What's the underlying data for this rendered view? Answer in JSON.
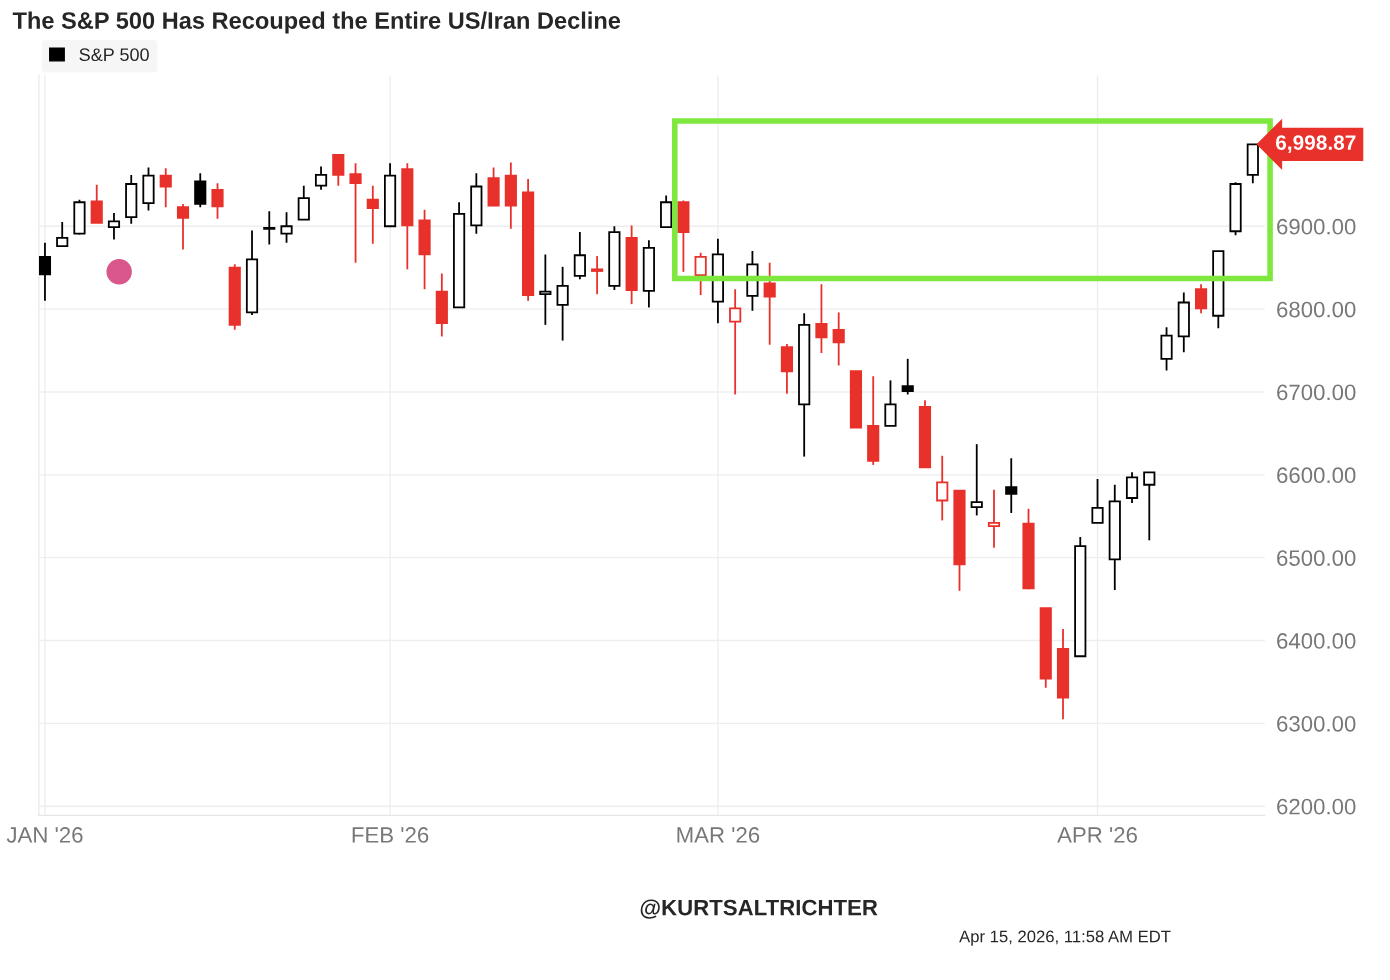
{
  "chart_data": {
    "type": "candlestick",
    "title": "The S&P 500 Has Recouped the Entire US/Iran Decline",
    "categories": [
      "JAN '26",
      null,
      null,
      null,
      null,
      null,
      null,
      null,
      null,
      null,
      null,
      null,
      null,
      null,
      null,
      null,
      null,
      null,
      null,
      null,
      "FEB '26",
      null,
      null,
      null,
      null,
      null,
      null,
      null,
      null,
      null,
      null,
      null,
      null,
      null,
      null,
      null,
      null,
      null,
      null,
      "MAR '26",
      null,
      null,
      null,
      null,
      null,
      null,
      null,
      null,
      null,
      null,
      null,
      null,
      null,
      null,
      null,
      null,
      null,
      null,
      null,
      null,
      null,
      "APR '26",
      null,
      null,
      null,
      null,
      null,
      null,
      null,
      null,
      null
    ],
    "series": [
      {
        "name": "S&P 500",
        "ohlc": [
          [
            6863,
            6880,
            6810,
            6842
          ],
          [
            6876,
            6905,
            6876,
            6886
          ],
          [
            6891,
            6932,
            6890,
            6929
          ],
          [
            6930,
            6950,
            6904,
            6904
          ],
          [
            6899,
            6916,
            6884,
            6906
          ],
          [
            6911,
            6962,
            6903,
            6951
          ],
          [
            6928,
            6971,
            6919,
            6961
          ],
          [
            6961,
            6970,
            6923,
            6948
          ],
          [
            6923,
            6927,
            6872,
            6910
          ],
          [
            6954,
            6964,
            6923,
            6927
          ],
          [
            6944,
            6952,
            6909,
            6924
          ],
          [
            6850,
            6854,
            6775,
            6781
          ],
          [
            6796,
            6895,
            6793,
            6860
          ],
          [
            6897,
            6918,
            6878,
            6898
          ],
          [
            6891,
            6917,
            6880,
            6900
          ],
          [
            6908,
            6949,
            6908,
            6934
          ],
          [
            6949,
            6972,
            6944,
            6962
          ],
          [
            6986,
            6986,
            6949,
            6962
          ],
          [
            6963,
            6976,
            6856,
            6952
          ],
          [
            6932,
            6949,
            6879,
            6922
          ],
          [
            6900,
            6976,
            6900,
            6961
          ],
          [
            6969,
            6976,
            6848,
            6901
          ],
          [
            6907,
            6920,
            6824,
            6866
          ],
          [
            6821,
            6843,
            6767,
            6783
          ],
          [
            6802,
            6929,
            6802,
            6915
          ],
          [
            6901,
            6964,
            6891,
            6948
          ],
          [
            6958,
            6971,
            6924,
            6925
          ],
          [
            6961,
            6977,
            6897,
            6925
          ],
          [
            6941,
            6957,
            6810,
            6817
          ],
          [
            6818,
            6866,
            6781,
            6821
          ],
          [
            6805,
            6851,
            6762,
            6828
          ],
          [
            6840,
            6893,
            6836,
            6865
          ],
          [
            6848,
            6864,
            6818,
            6846
          ],
          [
            6828,
            6900,
            6823,
            6893
          ],
          [
            6886,
            6901,
            6806,
            6823
          ],
          [
            6822,
            6883,
            6802,
            6874
          ],
          [
            6899,
            6937,
            6899,
            6929
          ],
          [
            6929,
            6931,
            6845,
            6893
          ],
          [
            6841,
            6868,
            6817,
            6863
          ],
          [
            6809,
            6885,
            6783,
            6866
          ],
          [
            6785,
            6824,
            6697,
            6801
          ],
          [
            6816,
            6870,
            6798,
            6854
          ],
          [
            6831,
            6856,
            6757,
            6815
          ],
          [
            6754,
            6758,
            6698,
            6725
          ],
          [
            6685,
            6795,
            6622,
            6781
          ],
          [
            6782,
            6830,
            6747,
            6766
          ],
          [
            6775,
            6796,
            6732,
            6760
          ],
          [
            6725,
            6725,
            6657,
            6657
          ],
          [
            6659,
            6719,
            6612,
            6617
          ],
          [
            6659,
            6714,
            6659,
            6685
          ],
          [
            6707,
            6740,
            6697,
            6701
          ],
          [
            6682,
            6690,
            6609,
            6609
          ],
          [
            6569,
            6623,
            6545,
            6591
          ],
          [
            6581,
            6581,
            6460,
            6492
          ],
          [
            6561,
            6637,
            6551,
            6567
          ],
          [
            6538,
            6582,
            6512,
            6542
          ],
          [
            6585,
            6620,
            6554,
            6577
          ],
          [
            6541,
            6559,
            6462,
            6463
          ],
          [
            6439,
            6439,
            6343,
            6354
          ],
          [
            6390,
            6414,
            6305,
            6331
          ],
          [
            6381,
            6525,
            6381,
            6514
          ],
          [
            6542,
            6595,
            6542,
            6560
          ],
          [
            6498,
            6588,
            6461,
            6568
          ],
          [
            6572,
            6603,
            6566,
            6597
          ],
          [
            6588,
            6603,
            6521,
            6603
          ],
          [
            6740,
            6778,
            6726,
            6768
          ],
          [
            6767,
            6820,
            6748,
            6808
          ],
          [
            6824,
            6830,
            6795,
            6801
          ],
          [
            6792,
            6870,
            6777,
            6870
          ],
          [
            6894,
            6953,
            6889,
            6951
          ],
          [
            6962,
            6999,
            6952,
            6998.87
          ]
        ],
        "colors": [
          "#000000",
          "#000000",
          "#000000",
          "#e8312a",
          "#000000",
          "#000000",
          "#000000",
          "#e8312a",
          "#e8312a",
          "#000000",
          "#e8312a",
          "#e8312a",
          "#000000",
          "#000000",
          "#000000",
          "#000000",
          "#000000",
          "#e8312a",
          "#e8312a",
          "#e8312a",
          "#000000",
          "#e8312a",
          "#e8312a",
          "#e8312a",
          "#000000",
          "#000000",
          "#e8312a",
          "#e8312a",
          "#e8312a",
          "#000000",
          "#000000",
          "#000000",
          "#e8312a",
          "#000000",
          "#e8312a",
          "#000000",
          "#000000",
          "#e8312a",
          "#e8312a",
          "#000000",
          "#e8312a",
          "#000000",
          "#e8312a",
          "#e8312a",
          "#000000",
          "#e8312a",
          "#e8312a",
          "#e8312a",
          "#e8312a",
          "#000000",
          "#000000",
          "#e8312a",
          "#e8312a",
          "#e8312a",
          "#000000",
          "#e8312a",
          "#000000",
          "#e8312a",
          "#e8312a",
          "#e8312a",
          "#000000",
          "#000000",
          "#000000",
          "#000000",
          "#000000",
          "#000000",
          "#000000",
          "#e8312a",
          "#000000",
          "#000000",
          "#000000"
        ]
      }
    ],
    "ylim": [
      6189,
      7082
    ],
    "yticks": [
      {
        "value": 6200,
        "label": "6200.00"
      },
      {
        "value": 6300,
        "label": "6300.00"
      },
      {
        "value": 6400,
        "label": "6400.00"
      },
      {
        "value": 6500,
        "label": "6500.00"
      },
      {
        "value": 6600,
        "label": "6600.00"
      },
      {
        "value": 6700,
        "label": "6700.00"
      },
      {
        "value": 6800,
        "label": "6800.00"
      },
      {
        "value": 6900,
        "label": "6900.00"
      }
    ],
    "grid": true,
    "legend": "top left",
    "annotations": [
      "6,998.87",
      "@KURTSALTRICHTER",
      "Apr 15, 2026, 11:58 AM EDT"
    ]
  }
}
